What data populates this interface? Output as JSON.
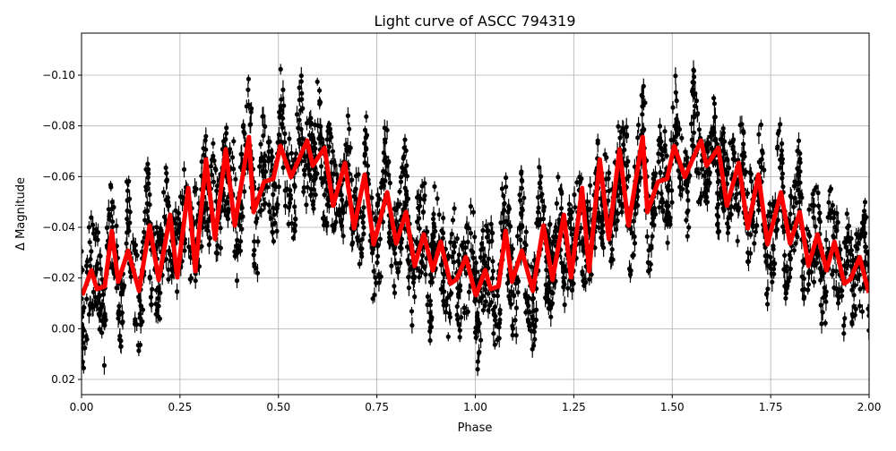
{
  "chart_data": {
    "type": "scatter",
    "title": "Light curve of ASCC 794319",
    "xlabel": "Phase",
    "ylabel": "Δ Magnitude",
    "xlim": [
      0,
      2
    ],
    "ylim": [
      0.026,
      -0.1166
    ],
    "y_inverted": true,
    "grid": true,
    "legend": "none",
    "x_ticks": [
      "0.00",
      "0.25",
      "0.50",
      "0.75",
      "1.00",
      "1.25",
      "1.50",
      "1.75",
      "2.00"
    ],
    "x_tick_values": [
      0,
      0.25,
      0.5,
      0.75,
      1.0,
      1.25,
      1.5,
      1.75,
      2.0
    ],
    "y_ticks": [
      "−0.10",
      "−0.08",
      "−0.06",
      "−0.04",
      "−0.02",
      "0.00",
      "0.02"
    ],
    "y_tick_values": [
      -0.1,
      -0.08,
      -0.06,
      -0.04,
      -0.02,
      0.0,
      0.02
    ],
    "observations": {
      "style": "black points with vertical error bars",
      "color": "#000000",
      "scatter_amplitude": 0.03
    },
    "model": {
      "style": "thick line",
      "color": "#ff0000",
      "x": [
        0.002,
        0.025,
        0.039,
        0.059,
        0.077,
        0.093,
        0.118,
        0.146,
        0.173,
        0.196,
        0.225,
        0.243,
        0.271,
        0.289,
        0.316,
        0.339,
        0.366,
        0.389,
        0.425,
        0.437,
        0.464,
        0.487,
        0.505,
        0.532,
        0.573,
        0.587,
        0.617,
        0.639,
        0.669,
        0.692,
        0.719,
        0.742,
        0.776,
        0.799,
        0.824,
        0.846,
        0.869,
        0.892,
        0.912,
        0.937,
        0.953,
        0.976,
        0.999,
        1.002,
        1.025,
        1.039,
        1.059,
        1.077,
        1.093,
        1.118,
        1.146,
        1.173,
        1.196,
        1.225,
        1.243,
        1.271,
        1.289,
        1.316,
        1.339,
        1.366,
        1.389,
        1.425,
        1.437,
        1.464,
        1.487,
        1.505,
        1.532,
        1.573,
        1.587,
        1.617,
        1.639,
        1.669,
        1.692,
        1.719,
        1.742,
        1.776,
        1.799,
        1.824,
        1.846,
        1.869,
        1.892,
        1.912,
        1.937,
        1.953,
        1.976,
        1.999
      ],
      "y": [
        -0.0132,
        -0.0231,
        -0.0156,
        -0.0167,
        -0.0386,
        -0.0185,
        -0.0308,
        -0.0149,
        -0.0407,
        -0.0192,
        -0.0449,
        -0.0202,
        -0.0555,
        -0.0227,
        -0.0668,
        -0.0354,
        -0.0707,
        -0.0407,
        -0.0756,
        -0.046,
        -0.058,
        -0.0591,
        -0.0721,
        -0.0598,
        -0.0742,
        -0.0643,
        -0.0714,
        -0.0485,
        -0.0654,
        -0.0396,
        -0.0608,
        -0.0333,
        -0.0538,
        -0.0336,
        -0.046,
        -0.0248,
        -0.0372,
        -0.023,
        -0.0343,
        -0.0178,
        -0.0195,
        -0.0283,
        -0.0142,
        -0.0132,
        -0.0231,
        -0.0156,
        -0.0167,
        -0.0386,
        -0.0185,
        -0.0308,
        -0.0149,
        -0.0407,
        -0.0192,
        -0.0449,
        -0.0202,
        -0.0555,
        -0.0227,
        -0.0668,
        -0.0354,
        -0.0707,
        -0.0407,
        -0.0756,
        -0.046,
        -0.058,
        -0.0591,
        -0.0721,
        -0.0598,
        -0.0742,
        -0.0643,
        -0.0714,
        -0.0485,
        -0.0654,
        -0.0396,
        -0.0608,
        -0.0333,
        -0.0538,
        -0.0336,
        -0.046,
        -0.0248,
        -0.0372,
        -0.023,
        -0.0343,
        -0.0178,
        -0.0195,
        -0.0283,
        -0.0142
      ]
    }
  }
}
